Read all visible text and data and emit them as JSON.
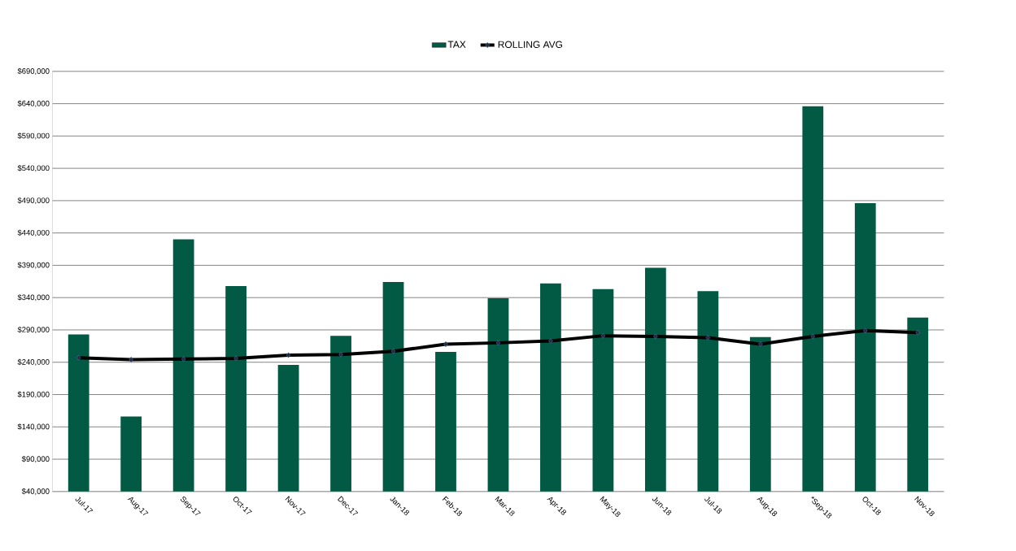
{
  "chart_data": {
    "type": "bar",
    "categories": [
      "Jul-17",
      "Aug-17",
      "Sep-17",
      "Oct-17",
      "Nov-17",
      "Dec-17",
      "Jan-18",
      "Feb-18",
      "Mar-18",
      "Apr-18",
      "May-18",
      "Jun-18",
      "Jul-18",
      "Aug-18",
      "*Sep-18",
      "Oct-18",
      "Nov-18"
    ],
    "series": [
      {
        "name": "TAX",
        "color": "#025a45",
        "values": [
          283000,
          156000,
          430000,
          358000,
          236000,
          281000,
          364000,
          256000,
          339000,
          362000,
          353000,
          386000,
          350000,
          279000,
          636000,
          486000,
          309000
        ]
      },
      {
        "name": "ROLLING AVG",
        "type": "line",
        "color": "#000000",
        "marker": "diamond",
        "values": [
          247000,
          244000,
          245000,
          246000,
          251000,
          252000,
          257000,
          268000,
          270000,
          273000,
          281000,
          280000,
          278000,
          268000,
          280000,
          289000,
          286000
        ]
      }
    ],
    "ylim": [
      40000,
      690000
    ],
    "yticks": [
      {
        "value": 40000,
        "label": "$40,000"
      },
      {
        "value": 90000,
        "label": "$90,000"
      },
      {
        "value": 140000,
        "label": "$140,000"
      },
      {
        "value": 190000,
        "label": "$190,000"
      },
      {
        "value": 240000,
        "label": "$240,000"
      },
      {
        "value": 290000,
        "label": "$290,000"
      },
      {
        "value": 340000,
        "label": "$340,000"
      },
      {
        "value": 390000,
        "label": "$390,000"
      },
      {
        "value": 440000,
        "label": "$440,000"
      },
      {
        "value": 490000,
        "label": "$490,000"
      },
      {
        "value": 540000,
        "label": "$540,000"
      },
      {
        "value": 590000,
        "label": "$590,000"
      },
      {
        "value": 640000,
        "label": "$640,000"
      },
      {
        "value": 690000,
        "label": "$690,000"
      }
    ],
    "grid": "y",
    "legend": "top"
  }
}
